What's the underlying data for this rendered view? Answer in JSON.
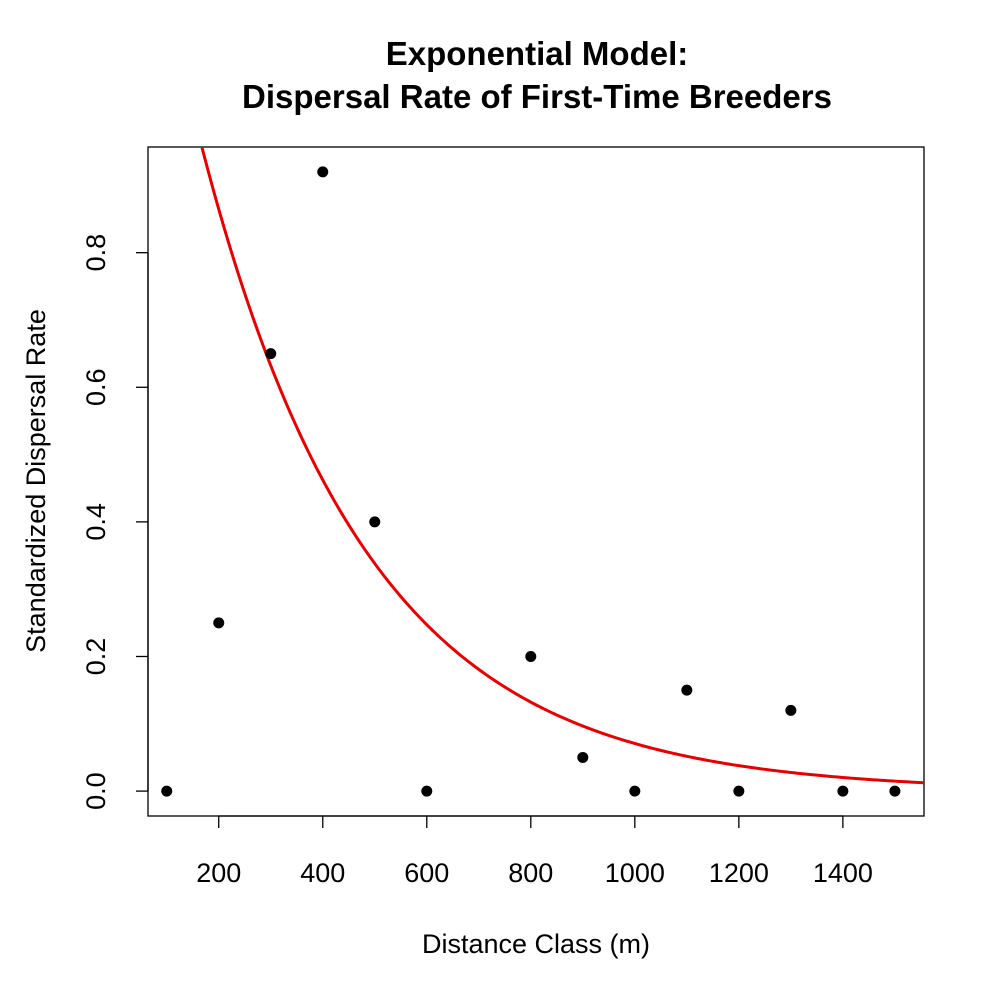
{
  "chart_data": {
    "type": "scatter",
    "title": [
      "Exponential Model:",
      "Dispersal Rate of First-Time Breeders"
    ],
    "xlabel": "Distance Class (m)",
    "ylabel": "Standardized Dispersal Rate",
    "xlim": [
      64,
      1556
    ],
    "ylim": [
      -0.037,
      0.957
    ],
    "xticks": [
      200,
      400,
      600,
      800,
      1000,
      1200,
      1400
    ],
    "xtick_labels": [
      "200",
      "400",
      "600",
      "800",
      "1000",
      "1200",
      "1400"
    ],
    "yticks": [
      0.0,
      0.2,
      0.4,
      0.6,
      0.8
    ],
    "ytick_labels": [
      "0.0",
      "0.2",
      "0.4",
      "0.6",
      "0.8"
    ],
    "grid": false,
    "points": {
      "x": [
        100,
        200,
        300,
        400,
        500,
        600,
        800,
        900,
        1000,
        1100,
        1200,
        1300,
        1400,
        1500
      ],
      "y": [
        0.0,
        0.25,
        0.65,
        0.92,
        0.4,
        0.0,
        0.2,
        0.05,
        0.0,
        0.15,
        0.0,
        0.12,
        0.0,
        0.0
      ],
      "color": "#000000"
    },
    "fit": {
      "model": "exponential",
      "formula": "y = a * exp(-b * x)",
      "a": 1.617,
      "b": 0.00313,
      "color": "#e50000"
    }
  }
}
